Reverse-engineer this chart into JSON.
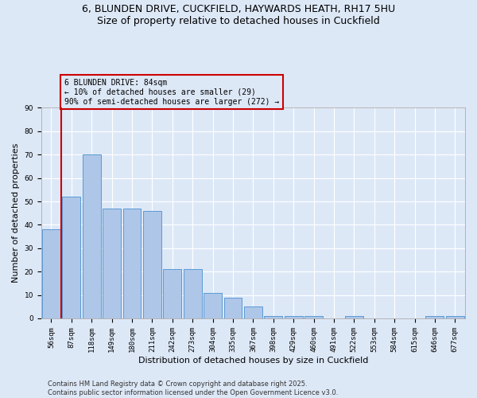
{
  "title_line1": "6, BLUNDEN DRIVE, CUCKFIELD, HAYWARDS HEATH, RH17 5HU",
  "title_line2": "Size of property relative to detached houses in Cuckfield",
  "xlabel": "Distribution of detached houses by size in Cuckfield",
  "ylabel": "Number of detached properties",
  "bar_labels": [
    "56sqm",
    "87sqm",
    "118sqm",
    "149sqm",
    "180sqm",
    "211sqm",
    "242sqm",
    "273sqm",
    "304sqm",
    "335sqm",
    "367sqm",
    "398sqm",
    "429sqm",
    "460sqm",
    "491sqm",
    "522sqm",
    "553sqm",
    "584sqm",
    "615sqm",
    "646sqm",
    "677sqm"
  ],
  "bar_values": [
    38,
    52,
    70,
    47,
    47,
    46,
    21,
    21,
    11,
    9,
    5,
    1,
    1,
    1,
    0,
    1,
    0,
    0,
    0,
    1,
    1
  ],
  "bar_color": "#aec6e8",
  "bar_edge_color": "#5b9bd5",
  "background_color": "#dde8f7",
  "grid_color": "#ffffff",
  "annotation_text": "6 BLUNDEN DRIVE: 84sqm\n← 10% of detached houses are smaller (29)\n90% of semi-detached houses are larger (272) →",
  "vline_x_idx": 1,
  "vline_color": "#cc0000",
  "annotation_box_edge": "#cc0000",
  "ylim": [
    0,
    90
  ],
  "yticks": [
    0,
    10,
    20,
    30,
    40,
    50,
    60,
    70,
    80,
    90
  ],
  "footer_line1": "Contains HM Land Registry data © Crown copyright and database right 2025.",
  "footer_line2": "Contains public sector information licensed under the Open Government Licence v3.0.",
  "title_fontsize": 9,
  "axis_label_fontsize": 8,
  "tick_fontsize": 6.5,
  "annotation_fontsize": 7,
  "footer_fontsize": 6
}
